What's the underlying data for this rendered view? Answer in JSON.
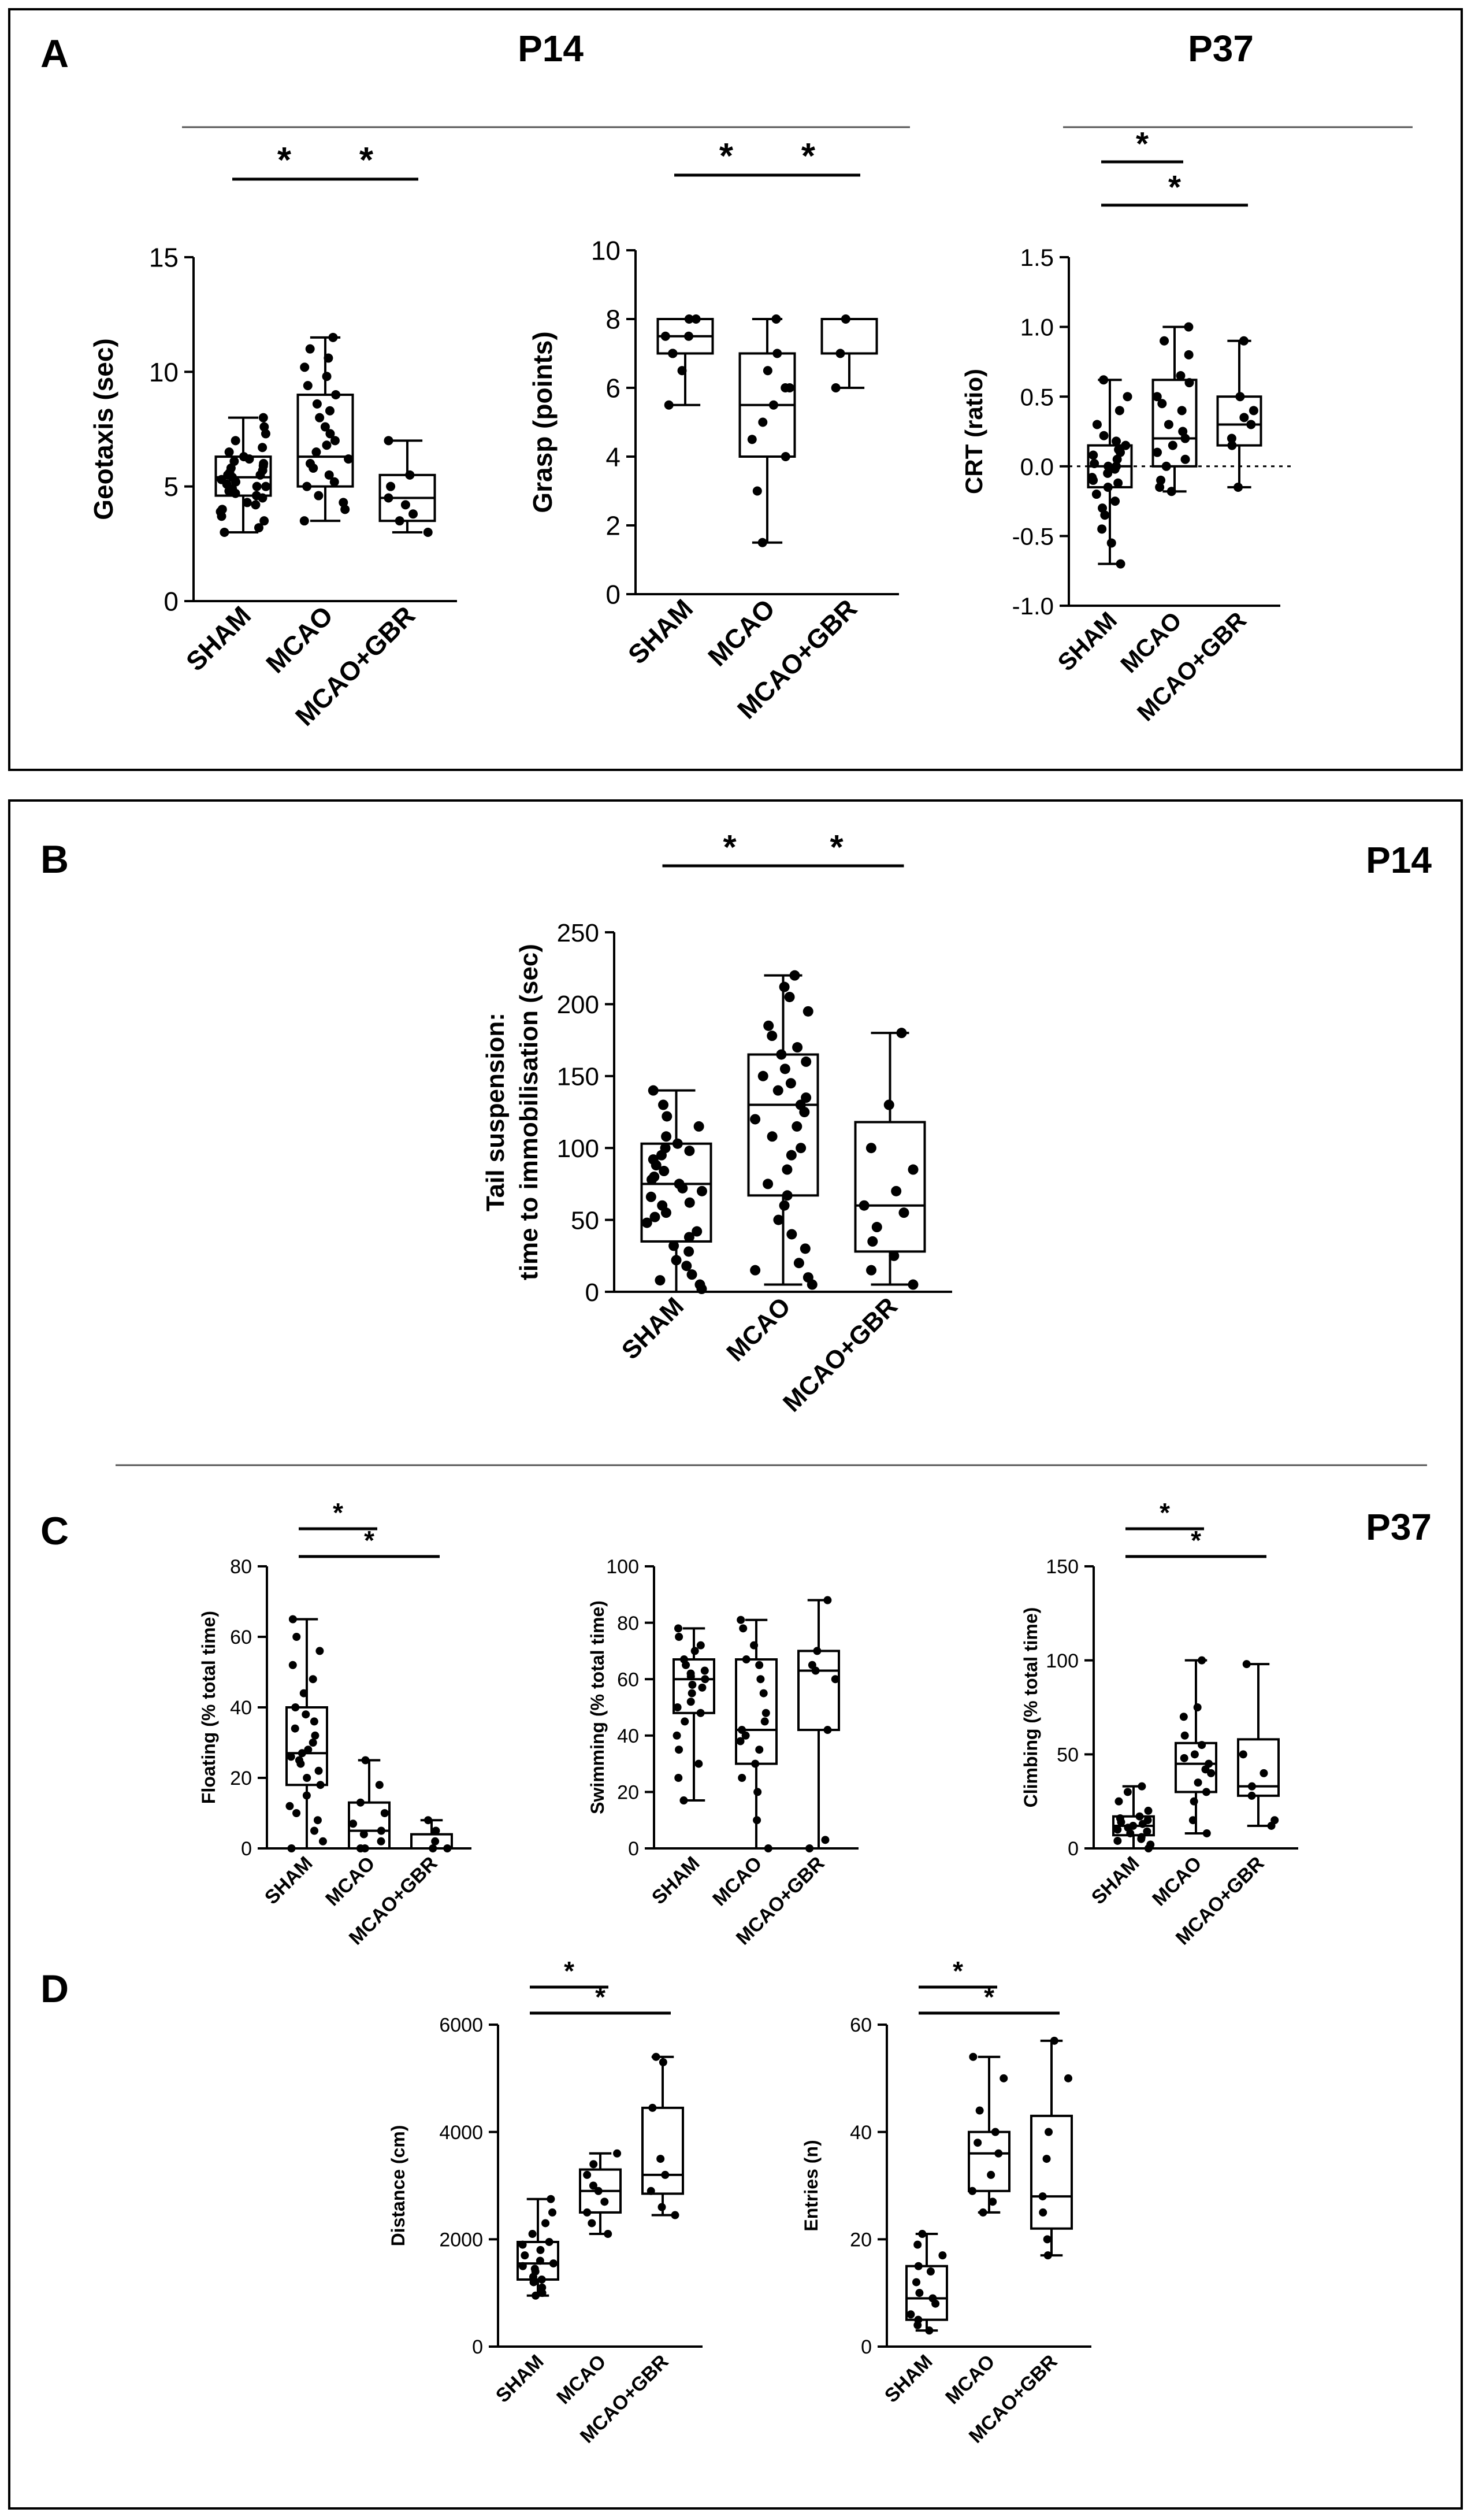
{
  "panels": [
    {
      "letter": "A",
      "ages": [
        "P14",
        "P37"
      ]
    },
    {
      "letter": "B",
      "ages": [
        "P14"
      ]
    },
    {
      "letter": "C",
      "ages": [
        "P37"
      ]
    },
    {
      "letter": "D",
      "ages": []
    }
  ],
  "significance_symbol": "*",
  "groups": [
    "SHAM",
    "MCAO",
    "MCAO+GBR"
  ],
  "chart_data": [
    {
      "id": "geotaxis",
      "panel": "A",
      "type": "box",
      "ylabel": "Geotaxis (sec)",
      "yticks": [
        0,
        5,
        10,
        15
      ],
      "ylim": [
        0,
        15
      ],
      "tick_decimals": 0,
      "categories": [
        "SHAM",
        "MCAO",
        "MCAO+GBR"
      ],
      "boxes": [
        {
          "min": 3.0,
          "q1": 4.6,
          "median": 5.4,
          "q3": 6.3,
          "max": 8.0
        },
        {
          "min": 3.5,
          "q1": 5.0,
          "median": 6.3,
          "q3": 9.0,
          "max": 11.5
        },
        {
          "min": 3.0,
          "q1": 3.5,
          "median": 4.5,
          "q3": 5.5,
          "max": 7.0
        }
      ],
      "points": [
        [
          3.0,
          3.2,
          3.5,
          3.7,
          3.9,
          4.0,
          4.2,
          4.3,
          4.5,
          4.6,
          4.7,
          4.8,
          4.9,
          5.0,
          5.0,
          5.1,
          5.2,
          5.3,
          5.4,
          5.5,
          5.5,
          5.6,
          5.7,
          5.8,
          5.9,
          6.0,
          6.1,
          6.2,
          6.3,
          6.5,
          6.7,
          7.0,
          7.3,
          7.6,
          8.0
        ],
        [
          3.5,
          4.0,
          4.3,
          4.6,
          5.0,
          5.2,
          5.5,
          5.8,
          6.0,
          6.2,
          6.5,
          6.8,
          7.0,
          7.3,
          7.6,
          8.0,
          8.3,
          8.6,
          9.0,
          9.4,
          9.8,
          10.2,
          10.6,
          11.0,
          11.5
        ],
        [
          3.0,
          3.5,
          3.8,
          4.2,
          4.5,
          5.0,
          5.5,
          7.0
        ]
      ],
      "significance": [
        {
          "from": 0,
          "to": 1
        },
        {
          "from": 1,
          "to": 2
        }
      ]
    },
    {
      "id": "grasp",
      "panel": "A",
      "type": "box",
      "ylabel": "Grasp (points)",
      "yticks": [
        0,
        2,
        4,
        6,
        8,
        10
      ],
      "ylim": [
        0,
        10
      ],
      "tick_decimals": 0,
      "categories": [
        "SHAM",
        "MCAO",
        "MCAO+GBR"
      ],
      "boxes": [
        {
          "min": 5.5,
          "q1": 7.0,
          "median": 7.5,
          "q3": 8.0,
          "max": 8.0
        },
        {
          "min": 1.5,
          "q1": 4.0,
          "median": 5.5,
          "q3": 7.0,
          "max": 8.0
        },
        {
          "min": 6.0,
          "q1": 7.0,
          "median": 8.0,
          "q3": 8.0,
          "max": 8.0
        }
      ],
      "points": [
        [
          5.5,
          6.5,
          7.0,
          7.0,
          7.5,
          7.5,
          8.0,
          8.0
        ],
        [
          1.5,
          3.0,
          4.0,
          4.5,
          5.0,
          5.5,
          6.0,
          6.0,
          6.5,
          7.0,
          8.0
        ],
        [
          6.0,
          7.0,
          8.0
        ]
      ],
      "significance": [
        {
          "from": 0,
          "to": 1
        },
        {
          "from": 1,
          "to": 2
        }
      ]
    },
    {
      "id": "crt",
      "panel": "A",
      "type": "box",
      "ylabel": "CRT (ratio)",
      "yticks": [
        -1.0,
        -0.5,
        0.0,
        0.5,
        1.0,
        1.5
      ],
      "ylim": [
        -1.0,
        1.5
      ],
      "tick_decimals": 1,
      "zero_line": true,
      "categories": [
        "SHAM",
        "MCAO",
        "MCAO+GBR"
      ],
      "boxes": [
        {
          "min": -0.7,
          "q1": -0.15,
          "median": 0.0,
          "q3": 0.15,
          "max": 0.62
        },
        {
          "min": -0.18,
          "q1": 0.0,
          "median": 0.2,
          "q3": 0.62,
          "max": 1.0
        },
        {
          "min": -0.15,
          "q1": 0.15,
          "median": 0.3,
          "q3": 0.5,
          "max": 0.9
        }
      ],
      "points": [
        [
          -0.7,
          -0.55,
          -0.45,
          -0.35,
          -0.3,
          -0.25,
          -0.2,
          -0.15,
          -0.12,
          -0.1,
          -0.08,
          -0.05,
          -0.02,
          0.0,
          0.0,
          0.02,
          0.05,
          0.08,
          0.1,
          0.12,
          0.15,
          0.18,
          0.22,
          0.3,
          0.4,
          0.5,
          0.62
        ],
        [
          -0.18,
          -0.15,
          -0.1,
          0.0,
          0.05,
          0.1,
          0.15,
          0.2,
          0.25,
          0.3,
          0.4,
          0.45,
          0.5,
          0.6,
          0.65,
          0.8,
          0.9,
          1.0
        ],
        [
          -0.15,
          0.15,
          0.2,
          0.3,
          0.35,
          0.4,
          0.5,
          0.9
        ]
      ],
      "significance": [
        {
          "from": 0,
          "to": 1
        },
        {
          "from": 0,
          "to": 2
        }
      ]
    },
    {
      "id": "tail",
      "panel": "B",
      "type": "box",
      "ylabel_lines": [
        "Tail suspension:",
        "time to immobilisation (sec)"
      ],
      "yticks": [
        0,
        50,
        100,
        150,
        200,
        250
      ],
      "ylim": [
        0,
        250
      ],
      "tick_decimals": 0,
      "categories": [
        "SHAM",
        "MCAO",
        "MCAO+GBR"
      ],
      "boxes": [
        {
          "min": 0,
          "q1": 35,
          "median": 75,
          "q3": 103,
          "max": 140
        },
        {
          "min": 5,
          "q1": 67,
          "median": 130,
          "q3": 165,
          "max": 220
        },
        {
          "min": 5,
          "q1": 28,
          "median": 60,
          "q3": 118,
          "max": 180
        }
      ],
      "points": [
        [
          2,
          5,
          8,
          12,
          18,
          22,
          28,
          32,
          38,
          42,
          48,
          52,
          55,
          60,
          62,
          66,
          70,
          72,
          75,
          78,
          80,
          84,
          88,
          92,
          95,
          98,
          100,
          103,
          108,
          115,
          122,
          130,
          140
        ],
        [
          5,
          10,
          15,
          20,
          30,
          40,
          50,
          60,
          67,
          75,
          85,
          95,
          100,
          108,
          115,
          120,
          125,
          130,
          135,
          140,
          145,
          150,
          155,
          160,
          165,
          170,
          178,
          185,
          195,
          205,
          212,
          220
        ],
        [
          5,
          15,
          25,
          35,
          45,
          55,
          60,
          70,
          85,
          100,
          130,
          180
        ]
      ],
      "significance": [
        {
          "from": 0,
          "to": 1
        },
        {
          "from": 1,
          "to": 2
        }
      ]
    },
    {
      "id": "floating",
      "panel": "C",
      "type": "box",
      "ylabel": "Floating (% total time)",
      "yticks": [
        0,
        20,
        40,
        60,
        80
      ],
      "ylim": [
        0,
        80
      ],
      "tick_decimals": 0,
      "categories": [
        "SHAM",
        "MCAO",
        "MCAO+GBR"
      ],
      "boxes": [
        {
          "min": 0,
          "q1": 18,
          "median": 27,
          "q3": 40,
          "max": 65
        },
        {
          "min": 0,
          "q1": 0,
          "median": 5,
          "q3": 13,
          "max": 25
        },
        {
          "min": 0,
          "q1": 0,
          "median": 0,
          "q3": 4,
          "max": 8
        }
      ],
      "points": [
        [
          0,
          2,
          5,
          8,
          10,
          12,
          15,
          18,
          20,
          22,
          24,
          25,
          26,
          27,
          28,
          30,
          32,
          34,
          36,
          38,
          40,
          44,
          48,
          52,
          56,
          60,
          65
        ],
        [
          0,
          0,
          2,
          4,
          5,
          7,
          10,
          13,
          18,
          25
        ],
        [
          0,
          0,
          2,
          5,
          8
        ]
      ],
      "significance": [
        {
          "from": 0,
          "to": 1
        },
        {
          "from": 0,
          "to": 2
        }
      ]
    },
    {
      "id": "swimming",
      "panel": "C",
      "type": "box",
      "ylabel": "Swimming (% total time)",
      "yticks": [
        0,
        20,
        40,
        60,
        80,
        100
      ],
      "ylim": [
        0,
        100
      ],
      "tick_decimals": 0,
      "categories": [
        "SHAM",
        "MCAO",
        "MCAO+GBR"
      ],
      "boxes": [
        {
          "min": 17,
          "q1": 48,
          "median": 60,
          "q3": 67,
          "max": 78
        },
        {
          "min": 0,
          "q1": 30,
          "median": 42,
          "q3": 67,
          "max": 81
        },
        {
          "min": 0,
          "q1": 42,
          "median": 63,
          "q3": 70,
          "max": 88
        }
      ],
      "points": [
        [
          17,
          25,
          30,
          35,
          40,
          45,
          48,
          50,
          52,
          55,
          57,
          58,
          60,
          61,
          62,
          63,
          65,
          67,
          70,
          72,
          75,
          78
        ],
        [
          0,
          10,
          20,
          25,
          30,
          35,
          38,
          40,
          42,
          45,
          48,
          55,
          60,
          65,
          67,
          72,
          78,
          81
        ],
        [
          0,
          3,
          42,
          60,
          63,
          65,
          70,
          88
        ]
      ],
      "significance": []
    },
    {
      "id": "climbing",
      "panel": "C",
      "type": "box",
      "ylabel": "Climbing (% total time)",
      "yticks": [
        0,
        50,
        100,
        150
      ],
      "ylim": [
        0,
        150
      ],
      "tick_decimals": 0,
      "categories": [
        "SHAM",
        "MCAO",
        "MCAO+GBR"
      ],
      "boxes": [
        {
          "min": 0,
          "q1": 7,
          "median": 12,
          "q3": 17,
          "max": 33
        },
        {
          "min": 8,
          "q1": 30,
          "median": 45,
          "q3": 56,
          "max": 100
        },
        {
          "min": 12,
          "q1": 28,
          "median": 33,
          "q3": 58,
          "max": 98
        }
      ],
      "points": [
        [
          0,
          2,
          4,
          5,
          6,
          8,
          9,
          10,
          11,
          12,
          13,
          14,
          15,
          16,
          17,
          20,
          25,
          30,
          33
        ],
        [
          8,
          15,
          25,
          30,
          35,
          40,
          42,
          45,
          48,
          50,
          55,
          60,
          70,
          75,
          100
        ],
        [
          12,
          15,
          28,
          33,
          40,
          50,
          98
        ]
      ],
      "significance": [
        {
          "from": 0,
          "to": 1
        },
        {
          "from": 0,
          "to": 2
        }
      ]
    },
    {
      "id": "distance",
      "panel": "D",
      "type": "box",
      "ylabel": "Distance (cm)",
      "yticks": [
        0,
        2000,
        4000,
        6000
      ],
      "ylim": [
        0,
        6000
      ],
      "tick_decimals": 0,
      "categories": [
        "SHAM",
        "MCAO",
        "MCAO+GBR"
      ],
      "boxes": [
        {
          "min": 950,
          "q1": 1250,
          "median": 1550,
          "q3": 1950,
          "max": 2750
        },
        {
          "min": 2100,
          "q1": 2500,
          "median": 2900,
          "q3": 3300,
          "max": 3600
        },
        {
          "min": 2450,
          "q1": 2850,
          "median": 3200,
          "q3": 4450,
          "max": 5400
        }
      ],
      "points": [
        [
          950,
          1000,
          1100,
          1200,
          1250,
          1300,
          1400,
          1450,
          1500,
          1550,
          1600,
          1700,
          1800,
          1900,
          1950,
          2100,
          2300,
          2500,
          2750
        ],
        [
          2100,
          2300,
          2500,
          2700,
          2900,
          3000,
          3200,
          3400,
          3600
        ],
        [
          2450,
          2600,
          2900,
          3200,
          3500,
          4450,
          5300,
          5400
        ]
      ],
      "significance": [
        {
          "from": 0,
          "to": 1
        },
        {
          "from": 0,
          "to": 2
        }
      ]
    },
    {
      "id": "entries",
      "panel": "D",
      "type": "box",
      "ylabel": "Entries (n)",
      "yticks": [
        0,
        20,
        40,
        60
      ],
      "ylim": [
        0,
        60
      ],
      "tick_decimals": 0,
      "categories": [
        "SHAM",
        "MCAO",
        "MCAO+GBR"
      ],
      "boxes": [
        {
          "min": 3,
          "q1": 5,
          "median": 9,
          "q3": 15,
          "max": 21
        },
        {
          "min": 25,
          "q1": 29,
          "median": 36,
          "q3": 40,
          "max": 54
        },
        {
          "min": 17,
          "q1": 22,
          "median": 28,
          "q3": 43,
          "max": 57
        }
      ],
      "points": [
        [
          3,
          4,
          5,
          6,
          8,
          9,
          10,
          12,
          14,
          15,
          17,
          19,
          21
        ],
        [
          25,
          27,
          29,
          32,
          36,
          38,
          40,
          44,
          50,
          54
        ],
        [
          17,
          20,
          25,
          28,
          35,
          40,
          50,
          57
        ]
      ],
      "significance": [
        {
          "from": 0,
          "to": 1
        },
        {
          "from": 0,
          "to": 2
        }
      ]
    }
  ]
}
